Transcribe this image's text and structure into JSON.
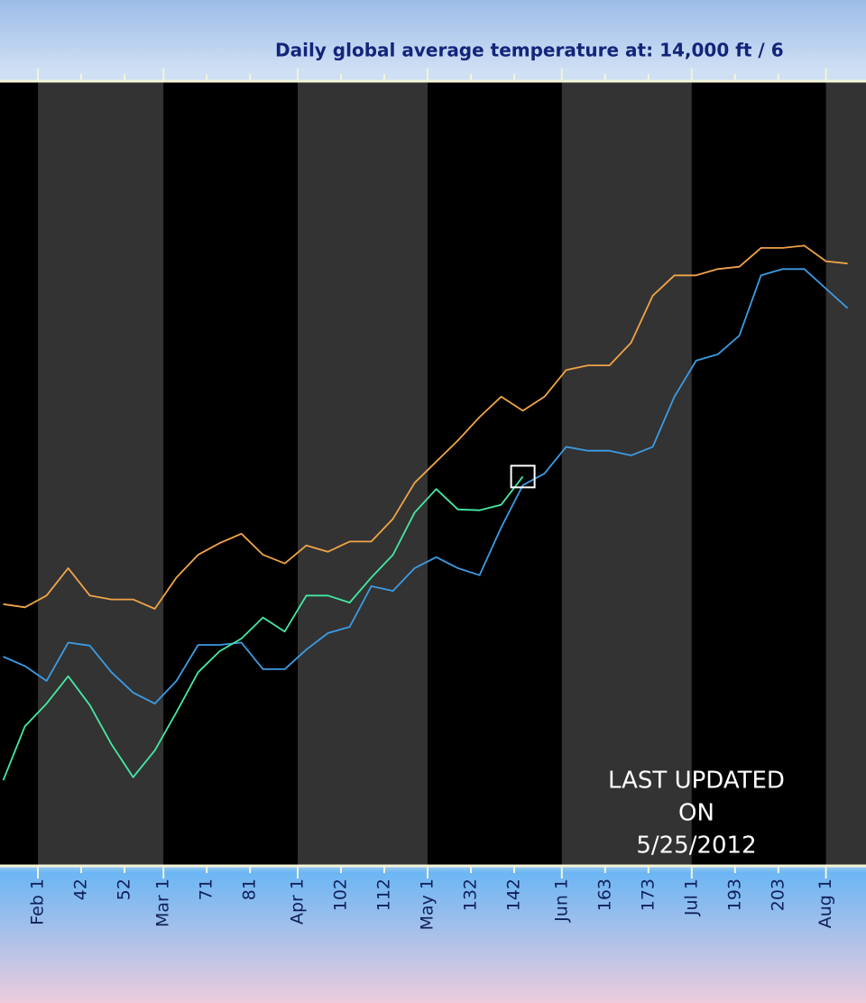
{
  "chart_data": {
    "type": "line",
    "title": "Daily global average temperature at: 14,000 ft / 6",
    "annotation": [
      "LAST UPDATED",
      "ON",
      "5/25/2012"
    ],
    "x": [
      24,
      29,
      34,
      39,
      44,
      49,
      54,
      59,
      64,
      69,
      74,
      79,
      84,
      89,
      94,
      99,
      104,
      109,
      114,
      119,
      124,
      129,
      134,
      139,
      144,
      149,
      154,
      159,
      164,
      169,
      174,
      179,
      184,
      189,
      194,
      199,
      204,
      209,
      214,
      219
    ],
    "series": [
      {
        "color": "#f0a448",
        "values": [
          33.2,
          32.8,
          34.3,
          37.8,
          34.3,
          33.8,
          33.8,
          32.6,
          36.6,
          39.5,
          41.0,
          42.2,
          39.5,
          38.4,
          40.7,
          39.9,
          41.2,
          41.2,
          44.1,
          48.7,
          51.4,
          54.1,
          57.1,
          59.7,
          57.9,
          59.7,
          63.1,
          63.7,
          63.7,
          66.6,
          72.6,
          75.2,
          75.2,
          76.0,
          76.3,
          78.7,
          78.7,
          79.0,
          77.0,
          76.7
        ]
      },
      {
        "color": "#3c9ce4",
        "values": [
          26.5,
          25.3,
          23.4,
          28.3,
          27.9,
          24.5,
          21.9,
          20.5,
          23.4,
          28.0,
          28.0,
          28.3,
          24.9,
          24.9,
          27.4,
          29.5,
          30.3,
          35.5,
          34.9,
          37.8,
          39.2,
          37.8,
          36.9,
          43.0,
          48.4,
          49.9,
          53.3,
          52.8,
          52.8,
          52.2,
          53.3,
          59.7,
          64.3,
          65.1,
          67.5,
          75.2,
          76.0,
          76.0,
          73.5,
          71.0
        ]
      },
      {
        "color": "#44eaa4",
        "values": [
          10.7,
          17.6,
          20.5,
          24.0,
          20.3,
          15.3,
          11.1,
          14.5,
          19.4,
          24.5,
          27.2,
          28.8,
          31.5,
          29.7,
          34.3,
          34.3,
          33.4,
          36.6,
          39.5,
          44.9,
          47.9,
          45.3,
          45.2,
          45.9,
          49.5,
          null,
          null,
          null,
          null,
          null,
          null,
          null,
          null,
          null,
          null,
          null,
          null,
          null,
          null,
          null
        ]
      }
    ],
    "xlim": [
      23.25,
      223.25
    ],
    "xticks": [
      {
        "value": 32,
        "label": "Feb 1"
      },
      42,
      52,
      {
        "value": 61,
        "label": "Mar 1"
      },
      71,
      81,
      {
        "value": 92,
        "label": "Apr 1"
      },
      102,
      112,
      {
        "value": 122,
        "label": "May 1"
      },
      132,
      142,
      {
        "value": 153,
        "label": "Jun 1"
      },
      163,
      173,
      {
        "value": 183,
        "label": "Jul 1"
      },
      193,
      203,
      {
        "value": 214,
        "label": "Aug 1"
      }
    ],
    "ylim": [
      0,
      100
    ]
  }
}
